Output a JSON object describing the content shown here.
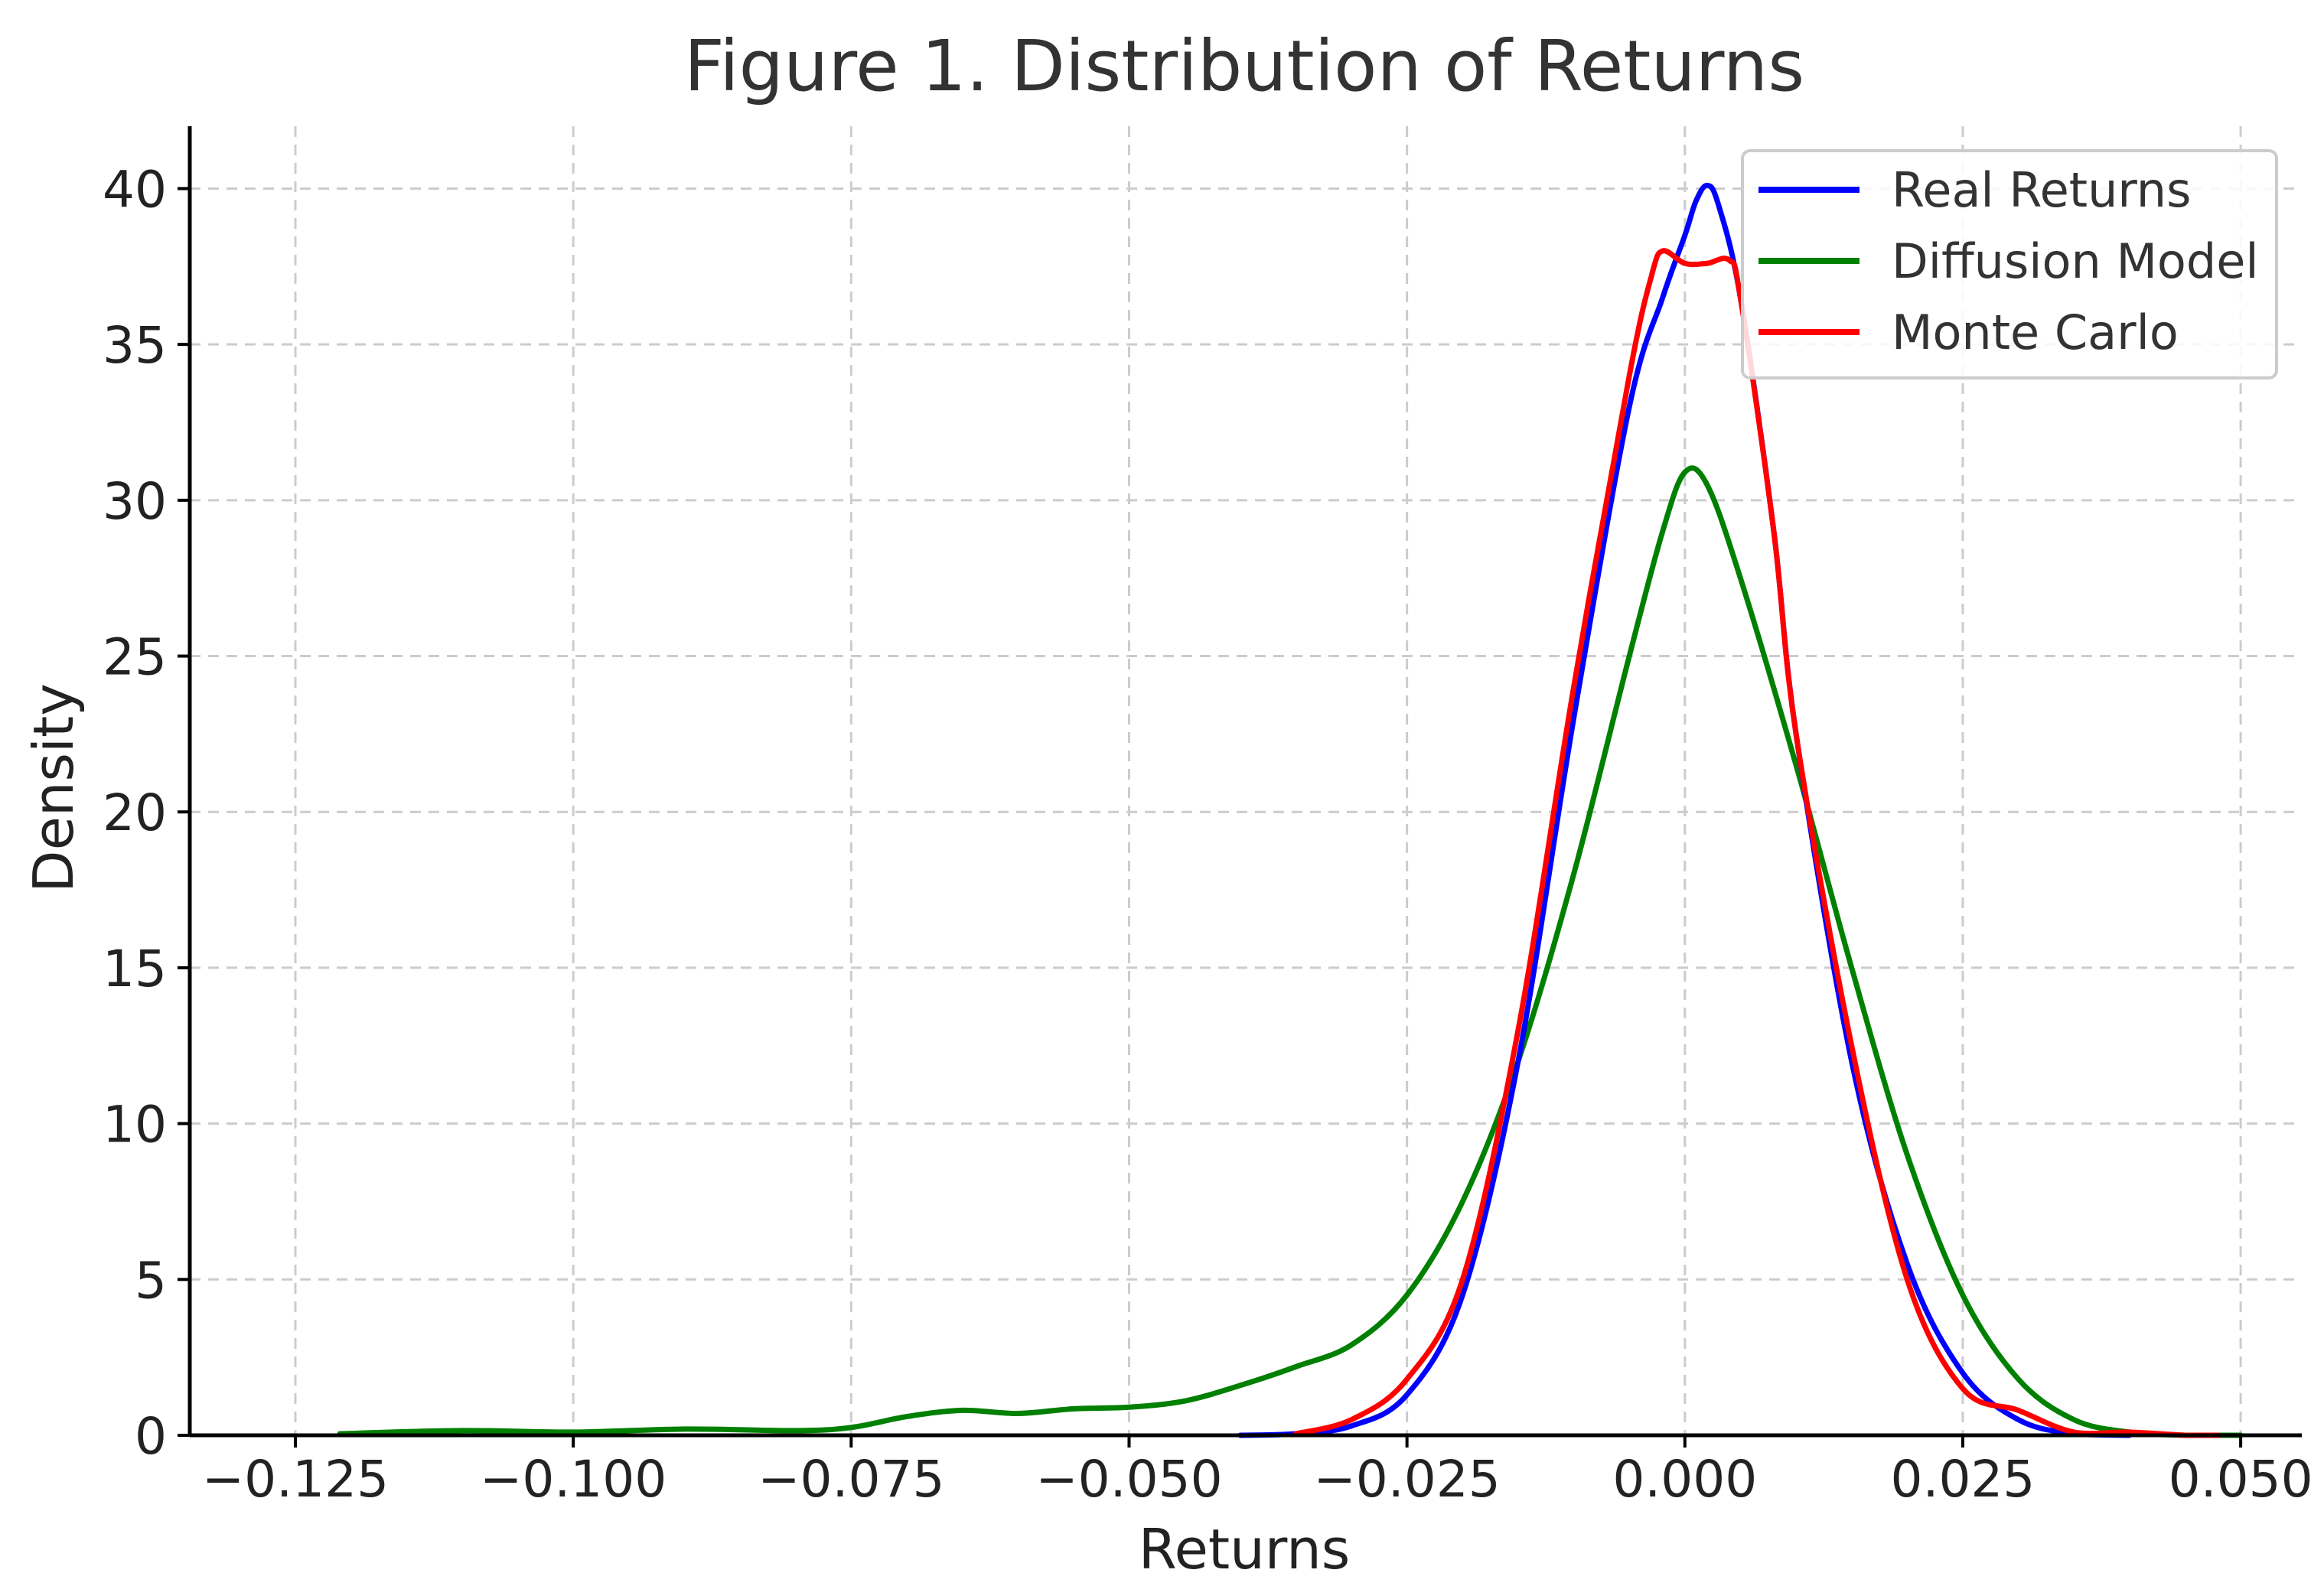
{
  "chart_data": {
    "type": "line",
    "title": "Figure 1. Distribution of Returns",
    "xlabel": "Returns",
    "ylabel": "Density",
    "xlim": [
      -0.1345,
      0.0555
    ],
    "ylim": [
      0,
      42
    ],
    "x_ticks": [
      -0.125,
      -0.1,
      -0.075,
      -0.05,
      -0.025,
      0.0,
      0.025,
      0.05
    ],
    "x_tick_labels": [
      "−0.125",
      "−0.100",
      "−0.075",
      "−0.050",
      "−0.025",
      "0.000",
      "0.025",
      "0.050"
    ],
    "y_ticks": [
      0,
      5,
      10,
      15,
      20,
      25,
      30,
      35,
      40
    ],
    "y_tick_labels": [
      "0",
      "5",
      "10",
      "15",
      "20",
      "25",
      "30",
      "35",
      "40"
    ],
    "grid": true,
    "legend_position": "top-right",
    "series": [
      {
        "name": "Real Returns",
        "color": "#0000ff",
        "points": [
          [
            -0.04,
            0.0
          ],
          [
            -0.035,
            0.05
          ],
          [
            -0.03,
            0.3
          ],
          [
            -0.025,
            1.3
          ],
          [
            -0.02,
            4.5
          ],
          [
            -0.015,
            12.0
          ],
          [
            -0.01,
            23.0
          ],
          [
            -0.005,
            33.0
          ],
          [
            -0.002,
            36.5
          ],
          [
            0.0,
            38.5
          ],
          [
            0.001,
            39.6
          ],
          [
            0.002,
            40.1
          ],
          [
            0.003,
            39.5
          ],
          [
            0.005,
            36.5
          ],
          [
            0.008,
            29.0
          ],
          [
            0.01,
            22.5
          ],
          [
            0.015,
            12.0
          ],
          [
            0.02,
            5.5
          ],
          [
            0.025,
            2.0
          ],
          [
            0.03,
            0.5
          ],
          [
            0.035,
            0.05
          ],
          [
            0.04,
            0.0
          ]
        ]
      },
      {
        "name": "Diffusion Model",
        "color": "#008000",
        "points": [
          [
            -0.121,
            0.05
          ],
          [
            -0.11,
            0.15
          ],
          [
            -0.1,
            0.1
          ],
          [
            -0.09,
            0.2
          ],
          [
            -0.08,
            0.15
          ],
          [
            -0.075,
            0.25
          ],
          [
            -0.07,
            0.6
          ],
          [
            -0.065,
            0.8
          ],
          [
            -0.06,
            0.7
          ],
          [
            -0.055,
            0.85
          ],
          [
            -0.05,
            0.9
          ],
          [
            -0.045,
            1.1
          ],
          [
            -0.04,
            1.6
          ],
          [
            -0.035,
            2.2
          ],
          [
            -0.03,
            2.9
          ],
          [
            -0.025,
            4.5
          ],
          [
            -0.02,
            7.5
          ],
          [
            -0.015,
            12.0
          ],
          [
            -0.01,
            18.0
          ],
          [
            -0.005,
            25.0
          ],
          [
            -0.002,
            29.0
          ],
          [
            0.0,
            30.9
          ],
          [
            0.002,
            30.5
          ],
          [
            0.005,
            27.5
          ],
          [
            0.01,
            21.5
          ],
          [
            0.015,
            15.0
          ],
          [
            0.02,
            9.0
          ],
          [
            0.025,
            4.5
          ],
          [
            0.03,
            1.8
          ],
          [
            0.035,
            0.5
          ],
          [
            0.04,
            0.1
          ],
          [
            0.045,
            0.0
          ],
          [
            0.05,
            0.0
          ]
        ]
      },
      {
        "name": "Monte Carlo",
        "color": "#ff0000",
        "points": [
          [
            -0.035,
            0.05
          ],
          [
            -0.03,
            0.5
          ],
          [
            -0.025,
            1.8
          ],
          [
            -0.02,
            5.0
          ],
          [
            -0.015,
            13.0
          ],
          [
            -0.01,
            24.0
          ],
          [
            -0.005,
            34.0
          ],
          [
            -0.003,
            37.2
          ],
          [
            -0.002,
            38.0
          ],
          [
            0.0,
            37.6
          ],
          [
            0.002,
            37.6
          ],
          [
            0.004,
            37.7
          ],
          [
            0.005,
            36.5
          ],
          [
            0.008,
            29.0
          ],
          [
            0.01,
            22.5
          ],
          [
            0.015,
            12.5
          ],
          [
            0.02,
            5.0
          ],
          [
            0.025,
            1.5
          ],
          [
            0.03,
            0.8
          ],
          [
            0.035,
            0.1
          ],
          [
            0.04,
            0.1
          ],
          [
            0.045,
            0.0
          ],
          [
            0.048,
            0.0
          ]
        ]
      }
    ]
  }
}
